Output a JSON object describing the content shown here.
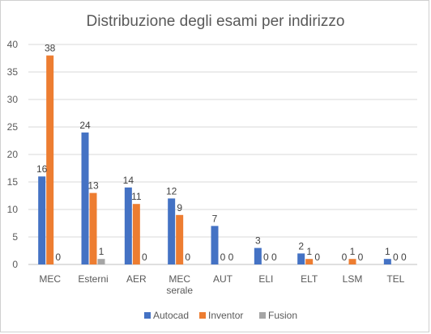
{
  "chart_data": {
    "type": "bar",
    "title": "Distribuzione degli esami per indirizzo",
    "xlabel": "",
    "ylabel": "",
    "ylim": [
      0,
      40
    ],
    "yticks": [
      0,
      5,
      10,
      15,
      20,
      25,
      30,
      35,
      40
    ],
    "grid": true,
    "legend_position": "bottom",
    "categories": [
      [
        "MEC"
      ],
      [
        "Esterni"
      ],
      [
        "AER"
      ],
      [
        "MEC",
        "serale"
      ],
      [
        "AUT"
      ],
      [
        "ELI"
      ],
      [
        "ELT"
      ],
      [
        "LSM"
      ],
      [
        "TEL"
      ]
    ],
    "series": [
      {
        "name": "Autocad",
        "color": "#4472c4",
        "values": [
          16,
          24,
          14,
          12,
          7,
          3,
          2,
          0,
          1
        ]
      },
      {
        "name": "Inventor",
        "color": "#ed7d31",
        "values": [
          38,
          13,
          11,
          9,
          0,
          0,
          1,
          1,
          0
        ]
      },
      {
        "name": "Fusion",
        "color": "#a5a5a5",
        "values": [
          0,
          1,
          0,
          0,
          0,
          0,
          0,
          0,
          0
        ]
      }
    ]
  }
}
